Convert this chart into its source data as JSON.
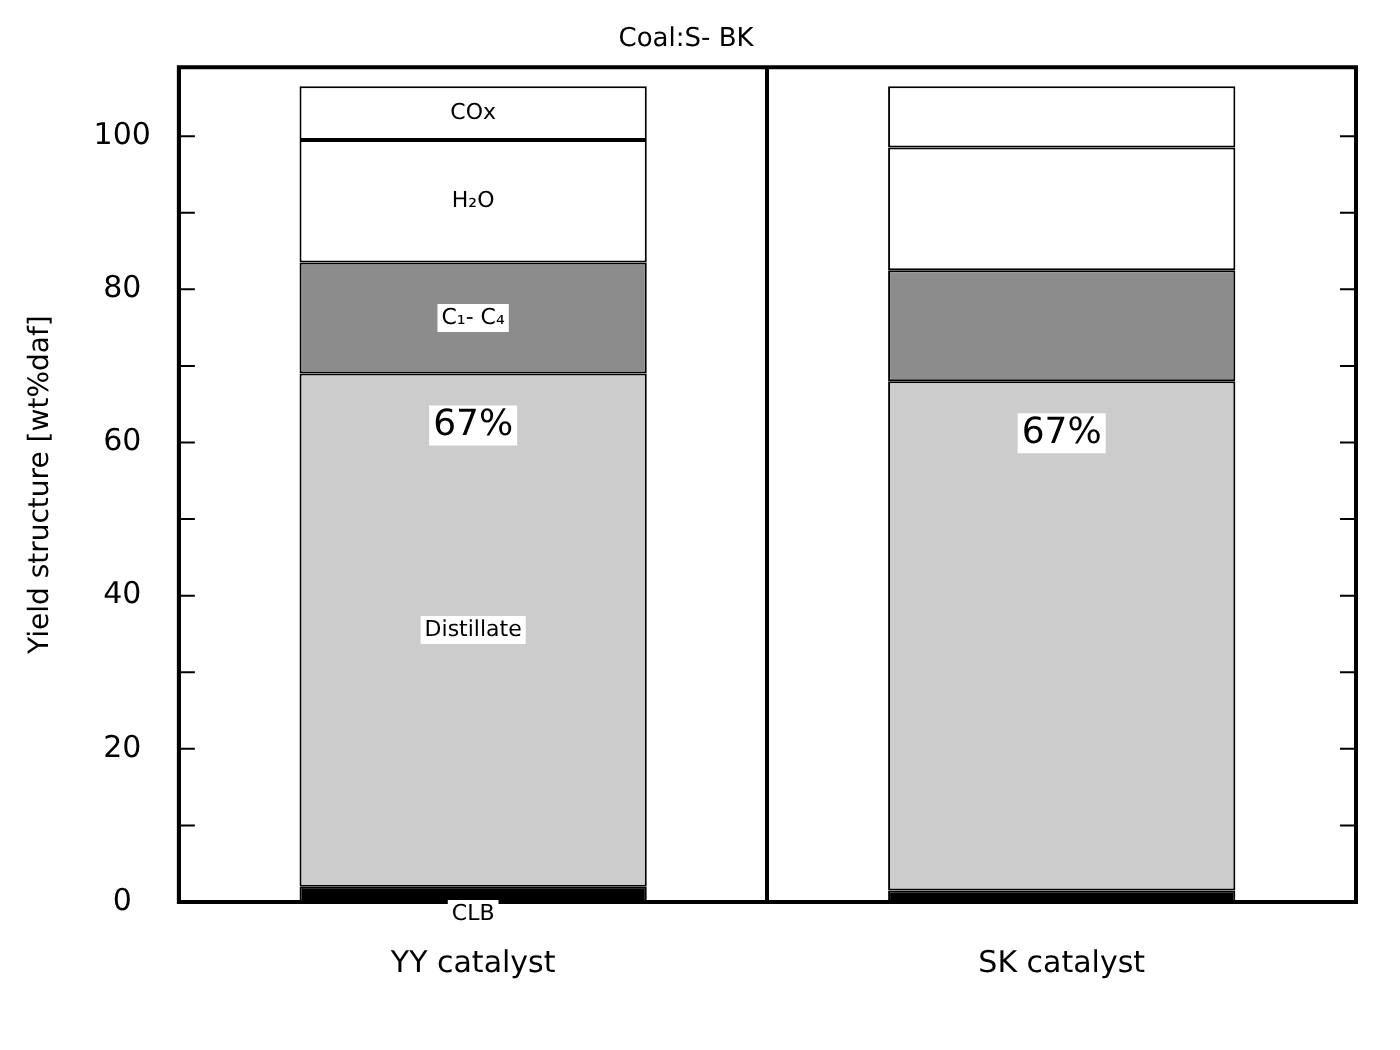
{
  "chart_data": {
    "type": "bar",
    "stacked": true,
    "title": "Coal:S- BK",
    "ylabel": "Yield structure [wt%daf]",
    "categories": [
      "YY catalyst",
      "SK catalyst"
    ],
    "series": [
      {
        "name": "CLB",
        "color": "#000000",
        "values": [
          2,
          1.5
        ]
      },
      {
        "name": "Distillate",
        "color": "#cccccc",
        "values": [
          67,
          66.5
        ]
      },
      {
        "name": "C₁- C₄",
        "color": "#8c8c8c",
        "values": [
          14.5,
          14.5
        ]
      },
      {
        "name": "H₂O",
        "color": "#ffffff",
        "values": [
          16,
          16
        ]
      },
      {
        "name": "COx",
        "color": "#ffffff",
        "values": [
          7,
          8
        ]
      }
    ],
    "ylim": [
      0,
      109
    ],
    "yticks": [
      0,
      {
        "value": 10,
        "label": null
      },
      20,
      {
        "value": 30,
        "label": null
      },
      40,
      {
        "value": 50,
        "label": null
      },
      60,
      {
        "value": 70,
        "label": null
      },
      80,
      {
        "value": 90,
        "label": null
      },
      100
    ],
    "grid": "x",
    "legend": false,
    "annotations": [
      "67%",
      "67%"
    ]
  }
}
